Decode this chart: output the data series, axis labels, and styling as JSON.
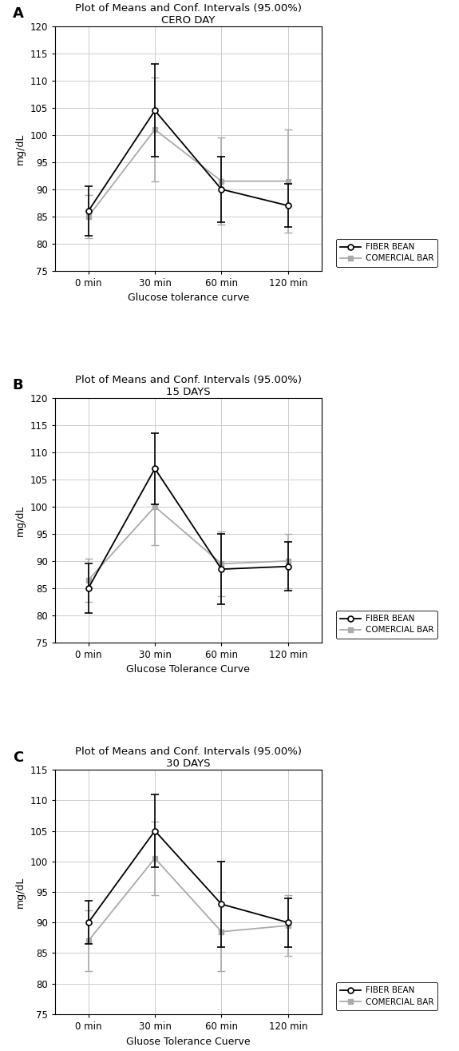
{
  "panels": [
    {
      "label": "A",
      "title1": "Plot of Means and Conf. Intervals (95.00%)",
      "title2": "CERO DAY",
      "xlabel": "Glucose tolerance curve",
      "ylim": [
        75,
        120
      ],
      "yticks": [
        75,
        80,
        85,
        90,
        95,
        100,
        105,
        110,
        115,
        120
      ],
      "fiber_bean": {
        "y": [
          86.0,
          104.5,
          90.0,
          87.0
        ],
        "yerr": [
          4.5,
          8.5,
          6.0,
          4.0
        ]
      },
      "comercial_bar": {
        "y": [
          85.0,
          101.0,
          91.5,
          91.5
        ],
        "yerr": [
          4.0,
          9.5,
          8.0,
          9.5
        ]
      }
    },
    {
      "label": "B",
      "title1": "Plot of Means and Conf. Intervals (95.00%)",
      "title2": "15 DAYS",
      "xlabel": "Glucose Tolerance Curve",
      "ylim": [
        75,
        120
      ],
      "yticks": [
        75,
        80,
        85,
        90,
        95,
        100,
        105,
        110,
        115,
        120
      ],
      "fiber_bean": {
        "y": [
          85.0,
          107.0,
          88.5,
          89.0
        ],
        "yerr": [
          4.5,
          6.5,
          6.5,
          4.5
        ]
      },
      "comercial_bar": {
        "y": [
          86.5,
          100.0,
          89.5,
          90.0
        ],
        "yerr": [
          4.0,
          7.0,
          6.0,
          5.0
        ]
      }
    },
    {
      "label": "C",
      "title1": "Plot of Means and Conf. Intervals (95.00%)",
      "title2": "30 DAYS",
      "xlabel": "Gluose Tolerance Cuerve",
      "ylim": [
        75,
        115
      ],
      "yticks": [
        75,
        80,
        85,
        90,
        95,
        100,
        105,
        110,
        115
      ],
      "fiber_bean": {
        "y": [
          90.0,
          105.0,
          93.0,
          90.0
        ],
        "yerr": [
          3.5,
          6.0,
          7.0,
          4.0
        ]
      },
      "comercial_bar": {
        "y": [
          87.0,
          100.5,
          88.5,
          89.5
        ],
        "yerr": [
          5.0,
          6.0,
          6.5,
          5.0
        ]
      }
    }
  ],
  "xtick_labels": [
    "0 min",
    "30 min",
    "60 min",
    "120 min"
  ],
  "ylabel": "mg/dL",
  "fiber_color": "#000000",
  "comercial_color": "#aaaaaa",
  "legend_labels": [
    "FIBER BEAN",
    "COMERCIAL BAR"
  ],
  "grid_color": "#cccccc",
  "bg_color": "#ffffff",
  "title_fontsize": 9.5,
  "label_fontsize": 9,
  "tick_fontsize": 8.5,
  "legend_fontsize": 7.5
}
